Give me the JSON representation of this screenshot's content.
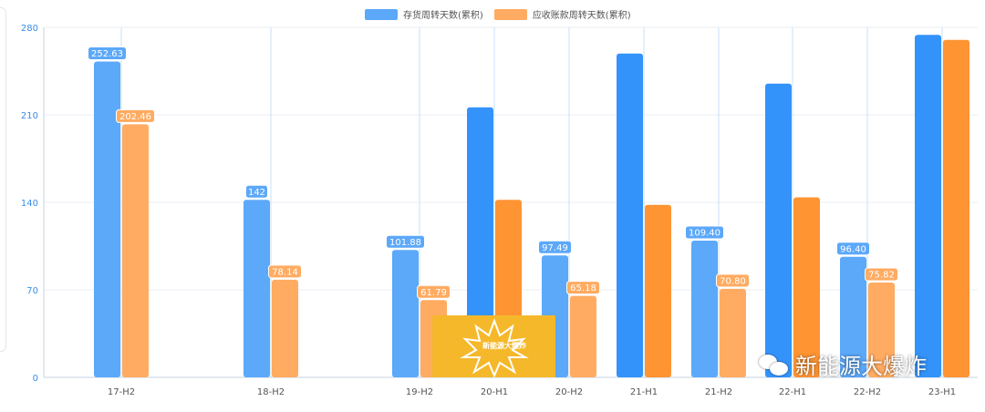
{
  "chart_data": {
    "type": "bar",
    "categories": [
      "17-H2",
      "18-H2",
      "19-H2",
      "20-H1",
      "20-H2",
      "21-H1",
      "21-H2",
      "22-H1",
      "22-H2",
      "23-H1"
    ],
    "series": [
      {
        "name": "存货周转天数(累积)",
        "values": [
          252.63,
          142,
          101.88,
          216,
          97.49,
          259,
          109.4,
          235,
          96.4,
          274
        ],
        "labels": [
          "252.63",
          "142",
          "101.88",
          "",
          "97.49",
          "",
          "109.40",
          "",
          "96.40",
          ""
        ]
      },
      {
        "name": "应收账款周转天数(累积)",
        "values": [
          202.46,
          78.14,
          61.79,
          142,
          65.18,
          138,
          70.8,
          144,
          75.82,
          270
        ],
        "labels": [
          "202.46",
          "78.14",
          "61.79",
          "",
          "65.18",
          "",
          "70.80",
          "",
          "75.82",
          ""
        ]
      }
    ],
    "ylim": [
      0,
      280
    ],
    "yticks": [
      "0",
      "70",
      "140",
      "210",
      "280"
    ],
    "grid": true,
    "legend_position": "top-center",
    "colors": {
      "series_light": [
        "#5ca8f9",
        "#ffab61"
      ],
      "series_dark": [
        "#3393fa",
        "#ff9433"
      ],
      "axis": "#c7d3e0",
      "grid": "#e8eef4",
      "vgrid": "#c9e2f8",
      "ytick_text": "#3a8de8",
      "xtick_text": "#555555"
    }
  },
  "watermark": {
    "text": "新能源大爆炸",
    "icon": "wechat-icon"
  },
  "logo": {
    "text": "新能源大爆炸",
    "icon": "burst-icon"
  }
}
